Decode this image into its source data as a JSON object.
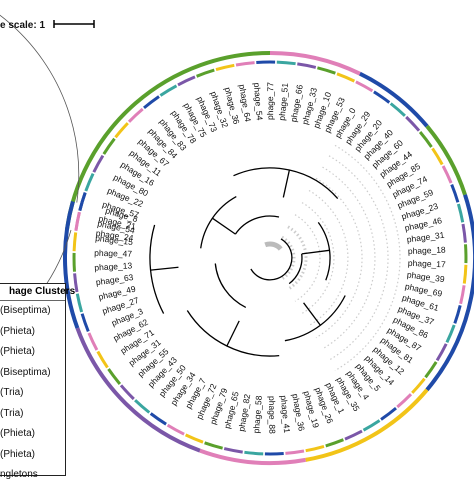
{
  "scale": {
    "label": "e scale: 1"
  },
  "leaves": [
    "phage_24",
    "phage_21",
    "phage_57",
    "phage_22",
    "phage_80",
    "phage_16",
    "phage_11",
    "phage_67",
    "phage_84",
    "phage_83",
    "phage_78",
    "phage_75",
    "phage_73",
    "phage_32",
    "phage_36",
    "phage_64",
    "phage_54",
    "phage_77",
    "phage_51",
    "phage_66",
    "phage_33",
    "phage_10",
    "phage_53",
    "phage_0",
    "phage_29",
    "phage_20",
    "phage_40",
    "phage_60",
    "phage_44",
    "phage_85",
    "phage_74",
    "phage_59",
    "phage_23",
    "phage_46",
    "phage_31",
    "phage_18",
    "phage_17",
    "phage_39",
    "phage_69",
    "phage_61",
    "phage_37",
    "phage_86",
    "phage_87",
    "phage_81",
    "phage_12",
    "phage_14",
    "phage_5",
    "phage_4",
    "phage_35",
    "phage_1",
    "phage_26",
    "phage_19",
    "phage_36",
    "phage_41",
    "phage_88",
    "phage_58",
    "phage_82",
    "phage_65",
    "phage_79",
    "phage_72",
    "phage_7",
    "phage_34",
    "phage_50",
    "phage_43",
    "phage_55",
    "phage_31",
    "phage_71",
    "phage_62",
    "phage_3",
    "phage_27",
    "phage_49",
    "phage_63",
    "phage_13",
    "phage_47",
    "phage_15",
    "phage_54",
    "phage_8"
  ],
  "legend": {
    "title": "hage Clusters",
    "items": [
      "(Biseptima)",
      "(Phieta)",
      "(Phieta)",
      "(Biseptima)",
      "(Tria)",
      "(Tria)",
      "(Phieta)",
      "(Phieta)",
      "ngletons"
    ]
  },
  "colors": {
    "ring_green": "#5aa02c",
    "ring_blue": "#1f4aa8",
    "ring_yellow": "#f2c418",
    "ring_pink": "#e07fb8",
    "ring_purple": "#7b57a8",
    "ring_teal": "#3aa6a0",
    "tree": "#000000",
    "arc_gray": "#cccccc"
  }
}
